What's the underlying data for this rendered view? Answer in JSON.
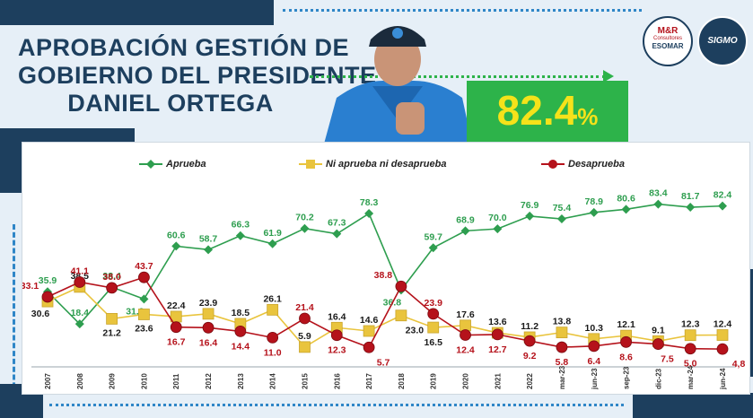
{
  "header": {
    "title_lines": [
      "APROBACIÓN GESTIÓN DE",
      "GOBIERNO DEL PRESIDENTE",
      "DANIEL ORTEGA"
    ],
    "headline_value": "82.4",
    "headline_unit": "%",
    "logo_mr_line1": "M&R",
    "logo_mr_line2": "Consultores",
    "logo_mr_line3": "ESOMAR",
    "logo_sigmo": "SIGMO"
  },
  "colors": {
    "navy": "#1d3f5e",
    "green": "#2db34a",
    "yellow_label": "#f5e21a",
    "aprueba": "#2e9e4f",
    "neutral": "#e9c43d",
    "desaprueba": "#b5121b"
  },
  "chart_data": {
    "type": "line",
    "categories": [
      "2007",
      "2008",
      "2009",
      "2010",
      "2011",
      "2012",
      "2013",
      "2014",
      "2015",
      "2016",
      "2017",
      "2018",
      "2019",
      "2020",
      "2021",
      "2022",
      "mar-23",
      "jun-23",
      "sep-23",
      "dic-23",
      "mar-24",
      "jun-24"
    ],
    "series": [
      {
        "name": "Aprueba",
        "marker": "diamond",
        "values": [
          35.9,
          18.4,
          38.4,
          31.9,
          60.6,
          58.7,
          66.3,
          61.9,
          70.2,
          67.3,
          78.3,
          36.8,
          59.7,
          68.9,
          70.0,
          76.9,
          75.4,
          78.9,
          80.6,
          83.4,
          81.7,
          82.4
        ]
      },
      {
        "name": "Ni aprueba ni desaprueba",
        "marker": "square",
        "values": [
          30.6,
          38.5,
          21.2,
          23.6,
          22.4,
          23.9,
          18.5,
          26.1,
          5.9,
          16.4,
          14.6,
          23.0,
          16.5,
          17.6,
          13.6,
          11.2,
          13.8,
          10.3,
          12.1,
          9.1,
          12.3,
          12.4
        ]
      },
      {
        "name": "Desaprueba",
        "marker": "circle",
        "values": [
          33.1,
          41.1,
          38.0,
          43.7,
          16.7,
          16.4,
          14.4,
          11.0,
          21.4,
          12.3,
          5.7,
          38.8,
          23.9,
          12.4,
          12.7,
          9.2,
          5.8,
          6.4,
          8.6,
          7.5,
          5.0,
          4.8
        ]
      }
    ],
    "labels": {
      "Aprueba": [
        "35.9",
        "18.4",
        "38.4",
        "31.9",
        "60.6",
        "58.7",
        "66.3",
        "61.9",
        "70.2",
        "67.3",
        "78.3",
        "36.8",
        "59.7",
        "68.9",
        "70.0",
        "76.9",
        "75.4",
        "78.9",
        "80.6",
        "83.4",
        "81.7",
        "82.4"
      ],
      "Ni aprueba ni desaprueba": [
        "30.6",
        "38.5",
        "21.2",
        "23.6",
        "22.4",
        "23.9",
        "18.5",
        "26.1",
        "5.9",
        "16.4",
        "14.6",
        "23.0",
        "16.5",
        "17.6",
        "13.6",
        "11.2",
        "13.8",
        "10.3",
        "12.1",
        "9.1",
        "12.3",
        "12.4"
      ],
      "Desaprueba": [
        "33.1",
        "41.1",
        "38.0",
        "43.7",
        "16.7",
        "16.4",
        "14.4",
        "11.0",
        "21.4",
        "12.3",
        "5.7",
        "38.8",
        "23.9",
        "12.4",
        "12.7",
        "9.2",
        "5.8",
        "6.4",
        "8.6",
        "7.5",
        "5.0",
        "4,8"
      ]
    },
    "ylim": [
      0,
      90
    ],
    "grid": false,
    "legend_placement": "top"
  }
}
